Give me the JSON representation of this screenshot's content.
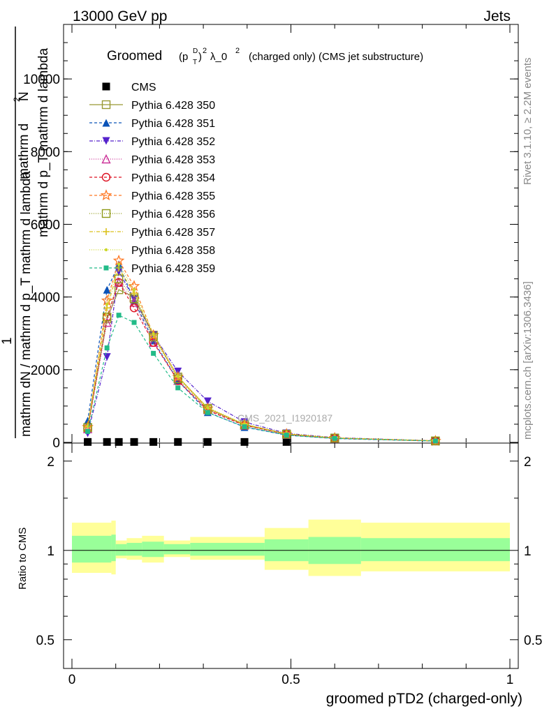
{
  "header": {
    "left": "13000 GeV pp",
    "right": "Jets"
  },
  "side_labels": {
    "rivet": "Rivet 3.1.10, ≥ 2.2M events",
    "mcplots": "mcplots.cern.ch [arXiv:1306.3436]"
  },
  "plot_title": {
    "main": "Groomed",
    "p": "(p",
    "sup_d": "D",
    "sub_t": "T",
    "close": ")",
    "sup_2": "2",
    "lambda": "λ_0",
    "sup_2b": "2",
    "rest": "(charged only) (CMS jet substructure)"
  },
  "watermark": "CMS_2021_I1920187",
  "colors": {
    "band_inner": "#99ff99",
    "band_outer": "#ffff99"
  },
  "chart_data": [
    {
      "type": "line",
      "panel": "main",
      "ylabel": "1 / mathrm dN / mathrm d p_T mathrm d lambda · mathrm d^2N / mathrm d p_T mathrm d lambda",
      "ylabel_parts": {
        "top_num": "mathrm d",
        "top_sup": "2",
        "top_num2": "N",
        "top_den": "mathrm d p_T mathrm d lambda",
        "one": "1",
        "bot": "mathrm dN / mathrm d p_T mathrm d lambda"
      },
      "xlim": [
        0,
        1
      ],
      "ylim": [
        0,
        11500
      ],
      "yticks": [
        {
          "v": 0,
          "label": "0"
        },
        {
          "v": 2000,
          "label": "2000"
        },
        {
          "v": 4000,
          "label": "4000"
        },
        {
          "v": 6000,
          "label": "6000"
        },
        {
          "v": 8000,
          "label": "8000"
        },
        {
          "v": 10000,
          "label": "10000"
        }
      ],
      "x": [
        0.036,
        0.08,
        0.107,
        0.142,
        0.186,
        0.242,
        0.31,
        0.394,
        0.49,
        0.6,
        0.83
      ],
      "series": [
        {
          "name": "CMS",
          "color": "#000000",
          "marker": "square-filled",
          "dash": "",
          "values": [
            12,
            12,
            12,
            12,
            12,
            12,
            12,
            12,
            12,
            null,
            null
          ]
        },
        {
          "name": "Pythia 6.428 350",
          "color": "#999933",
          "marker": "square-open",
          "dash": "",
          "values": [
            400,
            3400,
            4200,
            4000,
            2950,
            1800,
            940,
            490,
            230,
            120,
            40
          ]
        },
        {
          "name": "Pythia 6.428 351",
          "color": "#0b53b8",
          "marker": "triangle-up-filled",
          "dash": "4,3",
          "values": [
            600,
            4200,
            4900,
            3900,
            2800,
            1700,
            830,
            420,
            200,
            105,
            35
          ]
        },
        {
          "name": "Pythia 6.428 352",
          "color": "#5522cc",
          "marker": "triangle-down-filled",
          "dash": "5,2,1,2",
          "values": [
            250,
            2350,
            4700,
            3950,
            2950,
            1950,
            1130,
            560,
            250,
            130,
            45
          ]
        },
        {
          "name": "Pythia 6.428 353",
          "color": "#cc3399",
          "marker": "triangle-up-open",
          "dash": "1,2",
          "values": [
            370,
            3300,
            4400,
            3850,
            2750,
            1700,
            900,
            470,
            220,
            115,
            40
          ]
        },
        {
          "name": "Pythia 6.428 354",
          "color": "#dd1122",
          "marker": "circle-open",
          "dash": "4,3",
          "values": [
            380,
            3450,
            4400,
            3700,
            2750,
            1700,
            880,
            470,
            220,
            115,
            40
          ]
        },
        {
          "name": "Pythia 6.428 355",
          "color": "#ff7722",
          "marker": "star-open",
          "dash": "4,3",
          "values": [
            420,
            3900,
            5000,
            4300,
            2950,
            1800,
            930,
            490,
            230,
            120,
            40
          ]
        },
        {
          "name": "Pythia 6.428 356",
          "color": "#8f9916",
          "marker": "square-open",
          "dash": "1,2",
          "values": [
            410,
            3450,
            4500,
            3950,
            2900,
            1750,
            910,
            480,
            225,
            118,
            40
          ]
        },
        {
          "name": "Pythia 6.428 357",
          "color": "#dcc21d",
          "marker": "cross",
          "dash": "5,2,1,2",
          "values": [
            430,
            3700,
            4800,
            4100,
            2950,
            1800,
            940,
            500,
            235,
            122,
            42
          ]
        },
        {
          "name": "Pythia 6.428 358",
          "color": "#ccd82a",
          "marker": "dot",
          "dash": "1,2",
          "values": [
            440,
            3800,
            4900,
            4200,
            2980,
            1820,
            960,
            505,
            238,
            124,
            43
          ]
        },
        {
          "name": "Pythia 6.428 359",
          "color": "#22bb88",
          "marker": "square-filled-small",
          "dash": "4,3",
          "values": [
            300,
            2600,
            3500,
            3300,
            2450,
            1500,
            820,
            430,
            200,
            110,
            38
          ]
        }
      ]
    },
    {
      "type": "area",
      "panel": "ratio",
      "title": "",
      "ylabel": "Ratio to CMS",
      "xlabel": "groomed pTD2 (charged-only)",
      "xlim": [
        0,
        1
      ],
      "ylim": [
        0.4,
        2.3
      ],
      "log_y": true,
      "yticks": [
        {
          "v": 0.5,
          "label": "0.5"
        },
        {
          "v": 1,
          "label": "1"
        },
        {
          "v": 2,
          "label": "2"
        }
      ],
      "xticks": [
        {
          "v": 0,
          "label": "0"
        },
        {
          "v": 0.5,
          "label": "0.5"
        },
        {
          "v": 1,
          "label": "1"
        }
      ],
      "bins": [
        {
          "lo": 0.0,
          "hi": 0.09,
          "inner": [
            0.91,
            1.12
          ],
          "outer": [
            0.84,
            1.24
          ]
        },
        {
          "lo": 0.09,
          "hi": 0.1,
          "inner": [
            0.92,
            1.13
          ],
          "outer": [
            0.83,
            1.26
          ]
        },
        {
          "lo": 0.1,
          "hi": 0.125,
          "inner": [
            0.96,
            1.05
          ],
          "outer": [
            0.94,
            1.08
          ]
        },
        {
          "lo": 0.125,
          "hi": 0.16,
          "inner": [
            0.96,
            1.06
          ],
          "outer": [
            0.93,
            1.1
          ]
        },
        {
          "lo": 0.16,
          "hi": 0.21,
          "inner": [
            0.95,
            1.07
          ],
          "outer": [
            0.91,
            1.12
          ]
        },
        {
          "lo": 0.21,
          "hi": 0.27,
          "inner": [
            0.97,
            1.05
          ],
          "outer": [
            0.95,
            1.08
          ]
        },
        {
          "lo": 0.27,
          "hi": 0.44,
          "inner": [
            0.96,
            1.06
          ],
          "outer": [
            0.93,
            1.11
          ]
        },
        {
          "lo": 0.44,
          "hi": 0.54,
          "inner": [
            0.92,
            1.09
          ],
          "outer": [
            0.86,
            1.19
          ]
        },
        {
          "lo": 0.54,
          "hi": 0.66,
          "inner": [
            0.9,
            1.11
          ],
          "outer": [
            0.82,
            1.27
          ]
        },
        {
          "lo": 0.66,
          "hi": 1.0,
          "inner": [
            0.92,
            1.1
          ],
          "outer": [
            0.85,
            1.24
          ]
        }
      ],
      "reference_line": 1
    }
  ]
}
